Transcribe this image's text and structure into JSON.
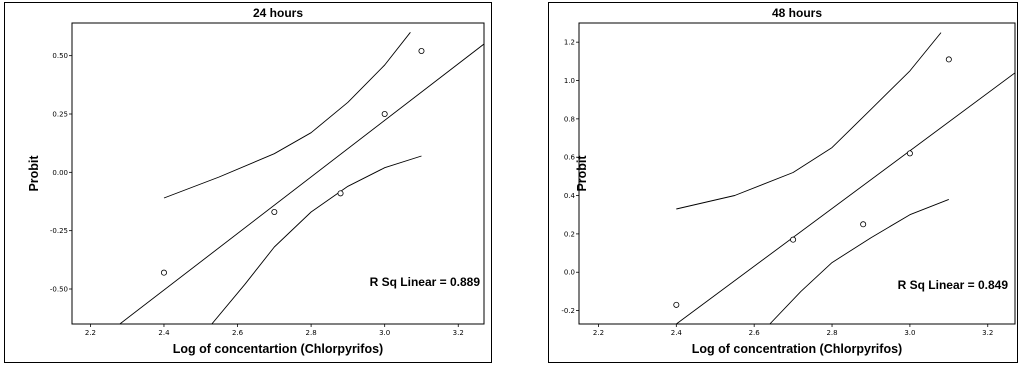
{
  "chart_data": [
    {
      "type": "scatter",
      "title": "24 hours",
      "xlabel": "Log of concentartion (Chlorpyrifos)",
      "ylabel": "Probit",
      "annotation": "R Sq Linear = 0.889",
      "xlim": [
        2.15,
        3.27
      ],
      "ylim": [
        -0.65,
        0.64
      ],
      "xticks": [
        2.2,
        2.4,
        2.6,
        2.8,
        3.0,
        3.2
      ],
      "xtick_labels": [
        "2.2",
        "2.4",
        "2.6",
        "2.8",
        "3.0",
        "3.2"
      ],
      "yticks": [
        -0.5,
        -0.25,
        0.0,
        0.25,
        0.5
      ],
      "ytick_labels": [
        "-0.50",
        "-0.25",
        "0.00",
        "0.25",
        "0.50"
      ],
      "grid": false,
      "points": [
        {
          "x": 2.4,
          "y": -0.43
        },
        {
          "x": 2.7,
          "y": -0.17
        },
        {
          "x": 2.88,
          "y": -0.09
        },
        {
          "x": 3.0,
          "y": 0.25
        },
        {
          "x": 3.1,
          "y": 0.52
        }
      ],
      "fit_line": [
        {
          "x": 2.28,
          "y": -0.65
        },
        {
          "x": 3.27,
          "y": 0.55
        }
      ],
      "ci_upper": [
        {
          "x": 2.4,
          "y": -0.11
        },
        {
          "x": 2.55,
          "y": -0.02
        },
        {
          "x": 2.7,
          "y": 0.08
        },
        {
          "x": 2.8,
          "y": 0.17
        },
        {
          "x": 2.9,
          "y": 0.3
        },
        {
          "x": 3.0,
          "y": 0.46
        },
        {
          "x": 3.07,
          "y": 0.6
        }
      ],
      "ci_lower": [
        {
          "x": 2.53,
          "y": -0.65
        },
        {
          "x": 2.62,
          "y": -0.48
        },
        {
          "x": 2.7,
          "y": -0.32
        },
        {
          "x": 2.8,
          "y": -0.17
        },
        {
          "x": 2.9,
          "y": -0.06
        },
        {
          "x": 3.0,
          "y": 0.02
        },
        {
          "x": 3.1,
          "y": 0.07
        }
      ]
    },
    {
      "type": "scatter",
      "title": "48 hours",
      "xlabel": "Log of concentration (Chlorpyrifos)",
      "ylabel": "Probit",
      "annotation": "R Sq Linear = 0.849",
      "xlim": [
        2.15,
        3.27
      ],
      "ylim": [
        -0.27,
        1.3
      ],
      "xticks": [
        2.2,
        2.4,
        2.6,
        2.8,
        3.0,
        3.2
      ],
      "xtick_labels": [
        "2.2",
        "2.4",
        "2.6",
        "2.8",
        "3.0",
        "3.2"
      ],
      "yticks": [
        -0.2,
        0.0,
        0.2,
        0.4,
        0.6,
        0.8,
        1.0,
        1.2
      ],
      "ytick_labels": [
        "-0.2",
        "0.0",
        "0.2",
        "0.4",
        "0.6",
        "0.8",
        "1.0",
        "1.2"
      ],
      "grid": false,
      "points": [
        {
          "x": 2.4,
          "y": -0.17
        },
        {
          "x": 2.7,
          "y": 0.17
        },
        {
          "x": 2.88,
          "y": 0.25
        },
        {
          "x": 3.0,
          "y": 0.62
        },
        {
          "x": 3.1,
          "y": 1.11
        }
      ],
      "fit_line": [
        {
          "x": 2.4,
          "y": -0.27
        },
        {
          "x": 3.27,
          "y": 1.04
        }
      ],
      "ci_upper": [
        {
          "x": 2.4,
          "y": 0.33
        },
        {
          "x": 2.55,
          "y": 0.4
        },
        {
          "x": 2.7,
          "y": 0.52
        },
        {
          "x": 2.8,
          "y": 0.65
        },
        {
          "x": 2.9,
          "y": 0.85
        },
        {
          "x": 3.0,
          "y": 1.05
        },
        {
          "x": 3.08,
          "y": 1.25
        }
      ],
      "ci_lower": [
        {
          "x": 2.64,
          "y": -0.27
        },
        {
          "x": 2.72,
          "y": -0.1
        },
        {
          "x": 2.8,
          "y": 0.05
        },
        {
          "x": 2.9,
          "y": 0.18
        },
        {
          "x": 3.0,
          "y": 0.3
        },
        {
          "x": 3.1,
          "y": 0.38
        }
      ]
    }
  ]
}
